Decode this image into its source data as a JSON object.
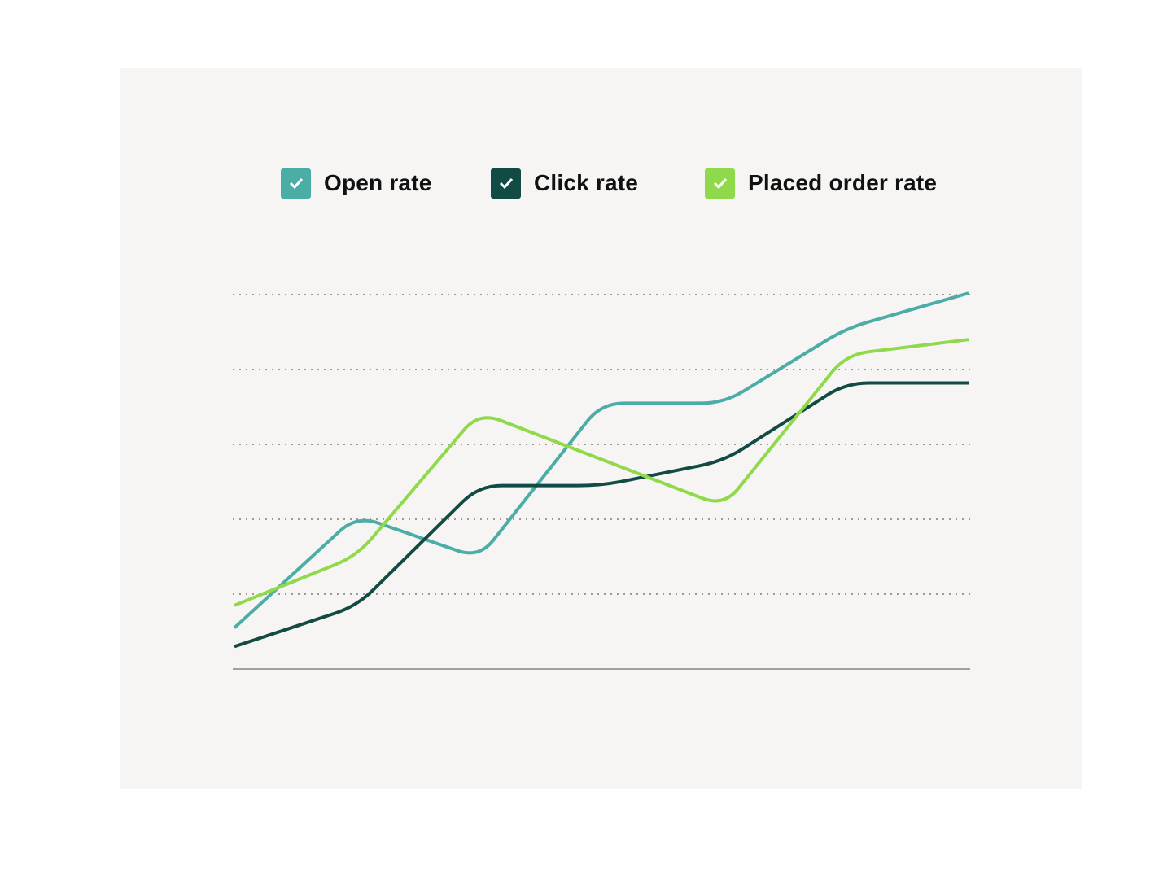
{
  "chart_data": {
    "type": "line",
    "title": "",
    "xlabel": "",
    "ylabel": "",
    "x": [
      0,
      1,
      2,
      3,
      4,
      5,
      6
    ],
    "ylim": [
      0,
      5
    ],
    "grid": true,
    "gridlines": [
      1,
      2,
      3,
      4,
      5
    ],
    "legend_placement": "top",
    "series": [
      {
        "name": "Open rate",
        "color": "#4badA6",
        "checked": true,
        "values": [
          0.55,
          2.05,
          1.48,
          3.55,
          3.55,
          4.55,
          5.02
        ]
      },
      {
        "name": "Click rate",
        "color": "#124a44",
        "checked": true,
        "values": [
          0.3,
          0.84,
          2.45,
          2.45,
          2.78,
          3.82,
          3.82
        ]
      },
      {
        "name": "Placed order rate",
        "color": "#8fd94a",
        "checked": true,
        "values": [
          0.85,
          1.51,
          3.43,
          2.8,
          2.17,
          4.2,
          4.4
        ]
      }
    ]
  },
  "colors": {
    "panel_background": "#f6f5f3",
    "gridline": "#9a9a9a",
    "baseline": "#a0a0a0"
  },
  "icons": {
    "legend_check": "checkmark-icon"
  }
}
